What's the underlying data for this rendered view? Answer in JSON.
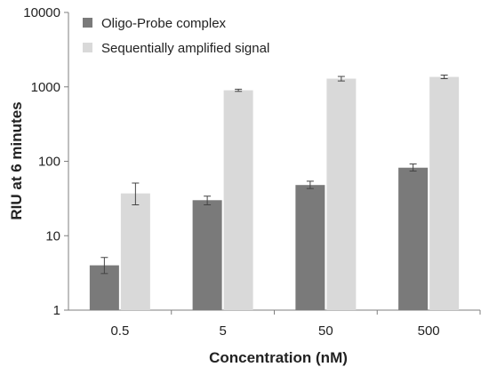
{
  "chart_data": {
    "type": "bar",
    "ylabel": "RIU at 6 minutes",
    "xlabel": "Concentration (nM)",
    "y_scale": "log",
    "ylim": [
      1,
      10000
    ],
    "y_ticks": [
      "1",
      "10",
      "100",
      "1000",
      "10000"
    ],
    "categories": [
      "0.5",
      "5",
      "50",
      "500"
    ],
    "legend_position": "top-left",
    "grid": false,
    "series": [
      {
        "name": "Oligo-Probe complex",
        "color": "#7a7a7a",
        "values": [
          4,
          30,
          48,
          82
        ],
        "error_low": [
          3.1,
          26,
          43,
          74
        ],
        "error_high": [
          5.1,
          34,
          54,
          92
        ]
      },
      {
        "name": "Sequentially amplified signal",
        "color": "#d9d9d9",
        "values": [
          37,
          900,
          1290,
          1360
        ],
        "error_low": [
          26,
          870,
          1200,
          1290
        ],
        "error_high": [
          51,
          930,
          1380,
          1440
        ]
      }
    ]
  }
}
